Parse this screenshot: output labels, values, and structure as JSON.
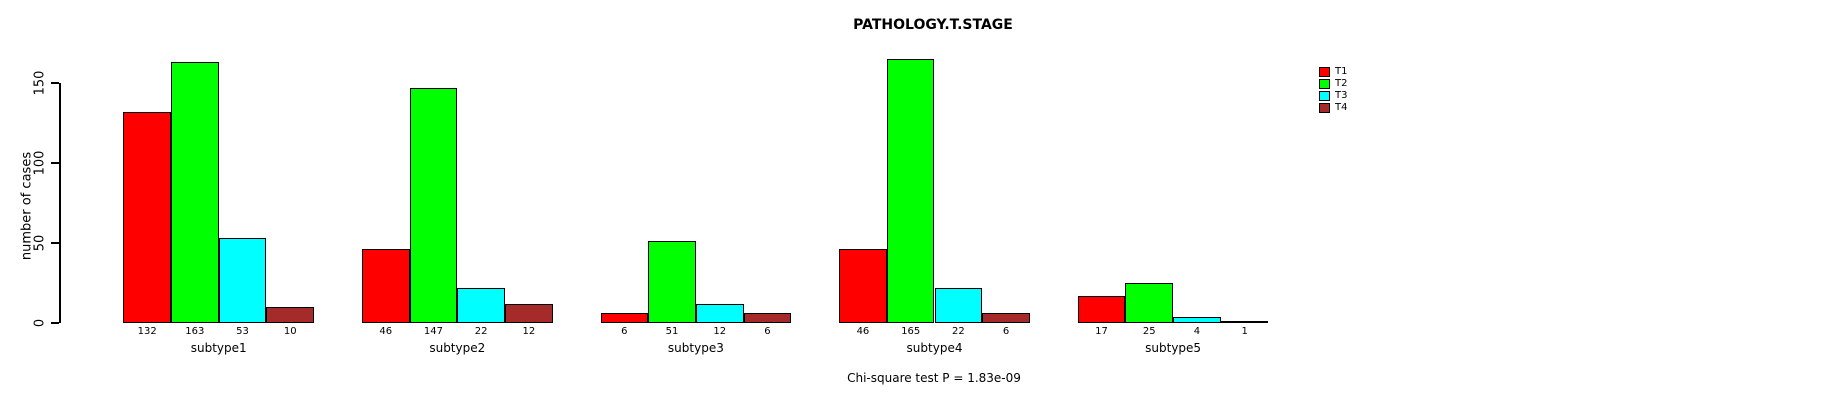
{
  "chart_data": {
    "type": "bar",
    "title": "PATHOLOGY.T.STAGE",
    "ylabel": "number of cases",
    "xlabel": "",
    "categories": [
      "subtype1",
      "subtype2",
      "subtype3",
      "subtype4",
      "subtype5"
    ],
    "series": [
      {
        "name": "T1",
        "color": "#ff0000",
        "values": [
          132,
          46,
          6,
          46,
          17
        ]
      },
      {
        "name": "T2",
        "color": "#00ff00",
        "values": [
          163,
          147,
          51,
          165,
          25
        ]
      },
      {
        "name": "T3",
        "color": "#00ffff",
        "values": [
          53,
          22,
          12,
          22,
          4
        ]
      },
      {
        "name": "T4",
        "color": "#a52a2a",
        "values": [
          10,
          12,
          6,
          6,
          1
        ]
      }
    ],
    "yticks": [
      0,
      50,
      100,
      150
    ],
    "ylim": [
      0,
      165
    ],
    "bar_value_labels_shown": true,
    "legend_position": "top-right",
    "grid": false,
    "annotation": "Chi-square test P = 1.83e-09"
  },
  "colors": {
    "background": "#ffffff",
    "text": "#000000",
    "bar_outline": "#000000",
    "axis": "#000000"
  }
}
